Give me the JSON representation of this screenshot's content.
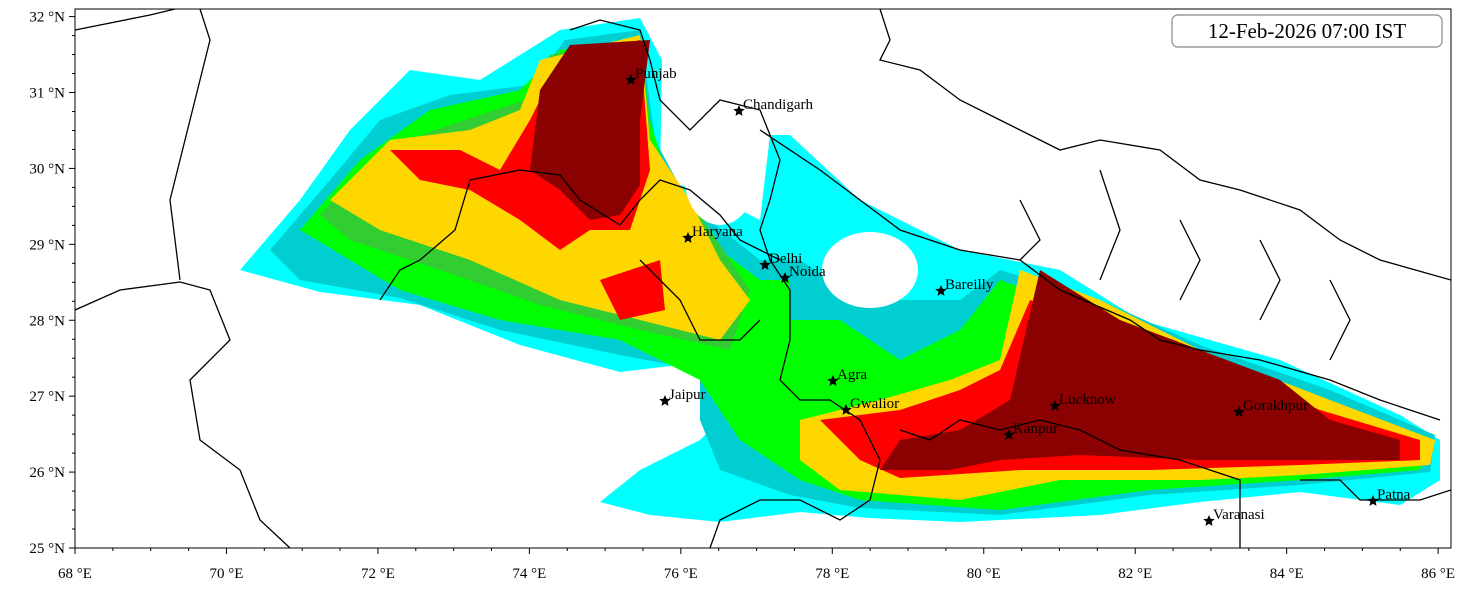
{
  "map": {
    "timestamp": "12-Feb-2026 07:00 IST",
    "xlim": [
      68,
      86.17
    ],
    "ylim": [
      25,
      32.1
    ],
    "xticks": [
      {
        "value": 68,
        "label": "68 °E"
      },
      {
        "value": 70,
        "label": "70 °E"
      },
      {
        "value": 72,
        "label": "72 °E"
      },
      {
        "value": 74,
        "label": "74 °E"
      },
      {
        "value": 76,
        "label": "76 °E"
      },
      {
        "value": 78,
        "label": "78 °E"
      },
      {
        "value": 80,
        "label": "80 °E"
      },
      {
        "value": 82,
        "label": "82 °E"
      },
      {
        "value": 84,
        "label": "84 °E"
      },
      {
        "value": 86,
        "label": "86 °E"
      }
    ],
    "yticks": [
      {
        "value": 25,
        "label": "25 °N"
      },
      {
        "value": 26,
        "label": "26 °N"
      },
      {
        "value": 27,
        "label": "27 °N"
      },
      {
        "value": 28,
        "label": "28 °N"
      },
      {
        "value": 29,
        "label": "29 °N"
      },
      {
        "value": 30,
        "label": "30 °N"
      },
      {
        "value": 31,
        "label": "31 °N"
      },
      {
        "value": 32,
        "label": "32 °N"
      }
    ],
    "cities": [
      "Punjab",
      "Chandigarh",
      "Haryana",
      "Delhi",
      "Noida",
      "Bareilly",
      "Agra",
      "Jaipur",
      "Gwalior",
      "Lucknow",
      "Kanpur",
      "Gorakhpur",
      "Varanasi",
      "Patna"
    ]
  }
}
